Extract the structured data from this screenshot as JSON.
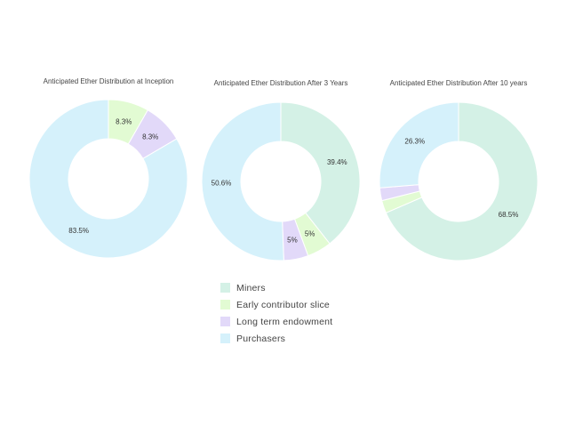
{
  "chart_data": [
    {
      "type": "pie",
      "title": "Anticipated Ether Distribution at Inception",
      "slices": [
        {
          "name": "Miners",
          "value": 0,
          "label": ""
        },
        {
          "name": "Early contributor slice",
          "value": 8.3,
          "label": "8.3%"
        },
        {
          "name": "Long term endowment",
          "value": 8.3,
          "label": "8.3%"
        },
        {
          "name": "Purchasers",
          "value": 83.5,
          "label": "83.5%"
        }
      ]
    },
    {
      "type": "pie",
      "title": "Anticipated Ether Distribution After 3 Years",
      "slices": [
        {
          "name": "Miners",
          "value": 39.4,
          "label": "39.4%"
        },
        {
          "name": "Early contributor slice",
          "value": 5,
          "label": "5%"
        },
        {
          "name": "Long term endowment",
          "value": 5,
          "label": "5%"
        },
        {
          "name": "Purchasers",
          "value": 50.6,
          "label": "50.6%"
        }
      ]
    },
    {
      "type": "pie",
      "title": "Anticipated Ether Distribution After 10 years",
      "slices": [
        {
          "name": "Miners",
          "value": 68.5,
          "label": "68.5%"
        },
        {
          "name": "Early contributor slice",
          "value": 2.6,
          "label": ""
        },
        {
          "name": "Long term endowment",
          "value": 2.6,
          "label": ""
        },
        {
          "name": "Purchasers",
          "value": 26.3,
          "label": "26.3%"
        }
      ]
    }
  ],
  "legend": {
    "placement": "bottom-center",
    "items": [
      {
        "name": "Miners",
        "color": "#d4f1e6"
      },
      {
        "name": "Early contributor slice",
        "color": "#e2fbd3"
      },
      {
        "name": "Long term endowment",
        "color": "#e2d9f9"
      },
      {
        "name": "Purchasers",
        "color": "#d5f1fb"
      }
    ]
  }
}
